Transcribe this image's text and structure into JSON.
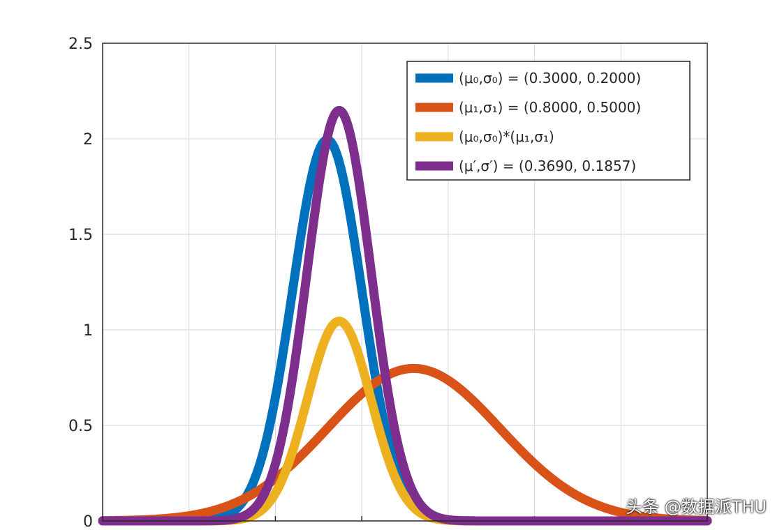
{
  "chart_data": {
    "type": "line",
    "xlim": [
      -1,
      2.5
    ],
    "ylim": [
      0,
      2.5
    ],
    "y_ticks": [
      "0",
      "0.5",
      "1",
      "1.5",
      "2",
      "2.5"
    ],
    "x_gridlines": [
      -0.5,
      0,
      0.5,
      1,
      1.5,
      2
    ],
    "grid": true,
    "legend_position": "top-right",
    "series": [
      {
        "name": "(μ₀,σ₀) = (0.3000, 0.2000)",
        "color": "#0072BD",
        "mu": 0.3,
        "sigma": 0.2,
        "scale": 1
      },
      {
        "name": "(μ₁,σ₁) = (0.8000, 0.5000)",
        "color": "#D95319",
        "mu": 0.8,
        "sigma": 0.5,
        "scale": 1
      },
      {
        "name": "(μ₀,σ₀)*(μ₁,σ₁)",
        "color": "#EDB120",
        "mu": 0.369,
        "sigma": 0.1857,
        "scale": 0.4866
      },
      {
        "name": "(μ′,σ′) = (0.3690, 0.1857)",
        "color": "#7E2F8E",
        "mu": 0.369,
        "sigma": 0.1857,
        "scale": 1
      }
    ]
  },
  "watermark": "头条 @数据派THU"
}
